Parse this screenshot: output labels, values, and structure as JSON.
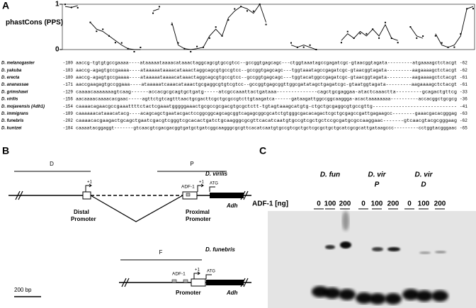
{
  "panels": {
    "a": "A",
    "b": "B",
    "c": "C"
  },
  "phastcons": {
    "label": "phastCons (PPS)",
    "yticks": [
      0,
      1
    ],
    "values": [
      0.95,
      0.93,
      0.97,
      null,
      0.6,
      0.45,
      0.4,
      0.3,
      0.2,
      0.1,
      0.02,
      0.0,
      0.0,
      null,
      0.85,
      0.9,
      null,
      0.6,
      0.1,
      0.02,
      0.0,
      0.02,
      0.05,
      0.3,
      0.45,
      0.3,
      0.7,
      0.85,
      0.95,
      0.9,
      0.8,
      1.0,
      0.6,
      null,
      null,
      null,
      0.1,
      0.05,
      0.1,
      0.05,
      0.0,
      null,
      null,
      null,
      0.2,
      0.35,
      0.25,
      0.4,
      0.3,
      0.45,
      0.3,
      0.55,
      0.25,
      0.2,
      null,
      0.5,
      0.3,
      0.25,
      null,
      0.35,
      0.1,
      0.05,
      0.1,
      0.3,
      0.9,
      0.95
    ]
  },
  "alignment": [
    {
      "species": "D. melanogaster",
      "start": -180,
      "sequence": "aaccg-tgtgtgccgaaaa----ataaaaataaaacataaactaggcagcgtgccgtcc--gccggtgagcagc---ctggtaaatagccgagatcgc-gtaacggtagata---------atgaaaagctctacgt",
      "end": -62
    },
    {
      "species": "D. yakuba",
      "start": -183,
      "sequence": "aaccg-agagtgccgaaaa----ataaaaataaaacataaactaggcagcgtgccgtcc--gccggtgagcagc---tggtaaatagccgagatcgc-gtaacggtagata---------aagaaaagctctacgt",
      "end": -62
    },
    {
      "species": "D. erecta",
      "start": -180,
      "sequence": "aaccg-agagtgccgaaaa----ataaaaataaaacataaactaggcagcgtgccgtcc--gccggtgagcagc---tggtacatggccgagatcgc-gtaacggtagata---------aagaaaagctctacgt",
      "end": -61
    },
    {
      "species": "D. ananassae",
      "start": -171,
      "sequence": "aaccgaagagtgccggaaa----ataaaaatcaaacataaactgcgaggcgtgtcgtcc--gccggtgagcggttggcgatatagctgagatcgc-gtaatggtagata---------aagaaaagctctacgt",
      "end": -61
    },
    {
      "species": "D. grimshawi",
      "start": -129,
      "sequence": "caaaacaaaaaaagtcaag------accacgcgcagtgctgatg-----atcgccaaattactgataaa--------------cagctgcgaggaa-atactcaaactta---------gcagactgttcg",
      "end": -33
    },
    {
      "species": "D. virilis",
      "start": -156,
      "sequence": "aacaaaacaaaacacgaac-----agttctgtcagtttaactgcgacttcgctgcgccgtcttgtaagatca------gataagattggccggcaaggga-acactaaaaaaaa----------accacggctgcgcg",
      "end": -36
    },
    {
      "species": "D. mojavensis (Adh1)",
      "start": -154,
      "sequence": "caaaacagaacgccgaaattttctactcgaaatgggggaaactgcgccgcgacgtgcgctctt-tgtagtaaagcatgtg-ctgctgcgaggcgtgccgttg-----------------------------",
      "end": -41
    },
    {
      "species": "D. immigrans",
      "start": -189,
      "sequence": "caaaaaacataaacatacg----acagcagctgaatacgactccggcggcagcagcggtcagagcggcgcatctgtgggcgacacagactcgctgcgagccgattgagaagcc--------gaaacgacacgggag",
      "end": -63
    },
    {
      "species": "D. funebris",
      "start": -202,
      "sequence": "caaaacacgaagactgcagctgaatcgacgtcgggtcgcacactgatctgcaagggcgcgttcacatcaatgtgccgtcgctgctccgcgatgcgccaaggaac-------gtcaacgtacgcgggaag",
      "end": -62
    },
    {
      "species": "D. kuntzei",
      "start": -184,
      "sequence": "caaaatacggaggt-------gtcaacgtcgacgacggtgatgctgatcggcaagggcgcgttcacatcaatgtgccgtcgctgctcgcgctgctgcatcgcgcattgataagccc---------cctggtacgggaac",
      "end": -65
    }
  ],
  "diagram": {
    "virilis": "D. virilis",
    "d": "D",
    "p": "P",
    "plus1": "+1",
    "adf1": "ADF-1",
    "atg": "ATG",
    "distal": "Distal",
    "proximal": "Proximal",
    "promoter": "Promoter",
    "adh": "Adh",
    "funebris": "D. funebris",
    "f": "F",
    "scale": "200 bp"
  },
  "gel": {
    "groups": [
      {
        "name": "D. fun"
      },
      {
        "name": "D. vir",
        "sub": "P"
      },
      {
        "name": "D. vir",
        "sub": "D"
      }
    ],
    "axis": "ADF-1 [ng]",
    "amounts": [
      0,
      100,
      200
    ]
  }
}
